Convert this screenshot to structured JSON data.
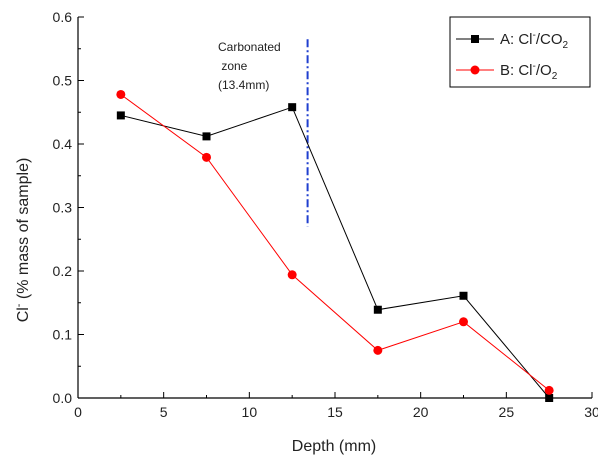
{
  "chart_data": {
    "type": "line",
    "xlabel": "Depth (mm)",
    "ylabel": {
      "pre": "Cl",
      "sup": "-",
      "post": " (% mass of sample)"
    },
    "xlim": [
      0,
      30
    ],
    "ylim": [
      0.0,
      0.6
    ],
    "xticks": [
      "0",
      "5",
      "10",
      "15",
      "20",
      "25",
      "30"
    ],
    "yticks": [
      "0.0",
      "0.1",
      "0.2",
      "0.3",
      "0.4",
      "0.5",
      "0.6"
    ],
    "grid": false,
    "legend_position": "top-right",
    "series": [
      {
        "legend": {
          "pre": "A: Cl",
          "sup": "-",
          "mid": "/CO",
          "sub": "2"
        },
        "marker": "square",
        "color": "#000000",
        "x": [
          2.5,
          7.5,
          12.5,
          17.5,
          22.5,
          27.5
        ],
        "y": [
          0.445,
          0.412,
          0.458,
          0.139,
          0.161,
          0.0
        ]
      },
      {
        "legend": {
          "pre": "B: Cl",
          "sup": "-",
          "mid": "/O",
          "sub": "2"
        },
        "marker": "circle",
        "color": "#ff0000",
        "x": [
          2.5,
          7.5,
          12.5,
          17.5,
          22.5,
          27.5
        ],
        "y": [
          0.478,
          0.379,
          0.194,
          0.075,
          0.12,
          0.012
        ]
      }
    ],
    "annotation": {
      "lines": [
        "Carbonated",
        " zone",
        "(13.4mm)"
      ],
      "line_x": 13.4,
      "line_y": [
        0.27,
        0.565
      ],
      "line_color": "#1f3fcf"
    }
  }
}
